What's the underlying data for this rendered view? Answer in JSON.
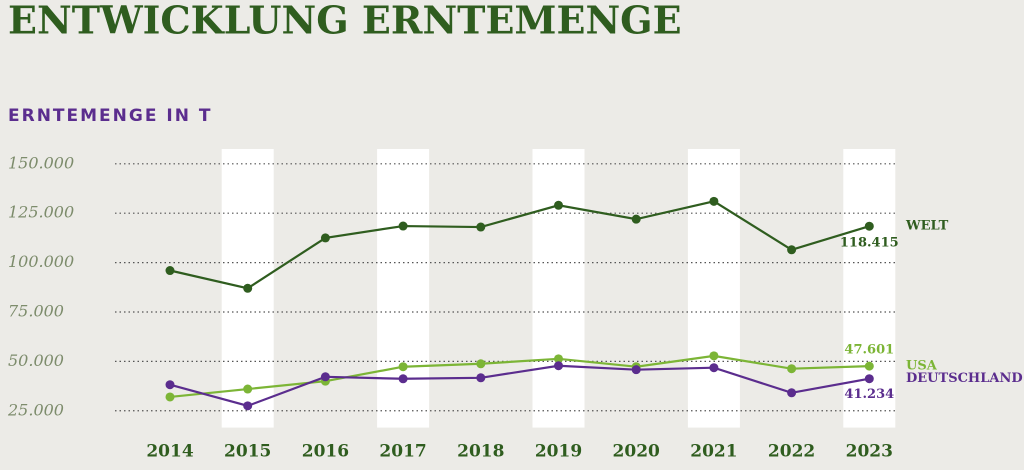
{
  "chart_data": {
    "type": "line",
    "title": "ENTWICKLUNG ERNTEMENGE",
    "y_axis_label": "ERNTEMENGE IN T",
    "categories": [
      "2014",
      "2015",
      "2016",
      "2017",
      "2018",
      "2019",
      "2020",
      "2021",
      "2022",
      "2023"
    ],
    "series": [
      {
        "name": "WELT",
        "color": "#2f5d1f",
        "values": [
          96000,
          87000,
          112500,
          118500,
          118000,
          129000,
          122000,
          131000,
          106500,
          118415
        ],
        "value_labels": [
          null,
          null,
          null,
          null,
          null,
          null,
          null,
          null,
          null,
          "118.415"
        ]
      },
      {
        "name": "USA",
        "color": "#7cb536",
        "values": [
          32000,
          36000,
          40000,
          47300,
          48800,
          51300,
          47300,
          52800,
          46300,
          47601
        ],
        "value_labels": [
          null,
          null,
          null,
          null,
          null,
          null,
          null,
          null,
          null,
          "47.601"
        ]
      },
      {
        "name": "DEUTSCHLAND",
        "color": "#5b2d8e",
        "values": [
          38200,
          27500,
          42200,
          41200,
          41700,
          47800,
          45800,
          46800,
          34100,
          41234
        ],
        "value_labels": [
          null,
          null,
          null,
          null,
          null,
          null,
          null,
          null,
          null,
          "41.234"
        ]
      }
    ],
    "ylim": [
      17500,
      157500
    ],
    "yticks": [
      {
        "value": 25000,
        "label": "25.000"
      },
      {
        "value": 50000,
        "label": "50.000"
      },
      {
        "value": 75000,
        "label": "75.000"
      },
      {
        "value": 100000,
        "label": "100.000"
      },
      {
        "value": 125000,
        "label": "125.000"
      },
      {
        "value": 150000,
        "label": "150.000"
      }
    ],
    "grid": true
  }
}
